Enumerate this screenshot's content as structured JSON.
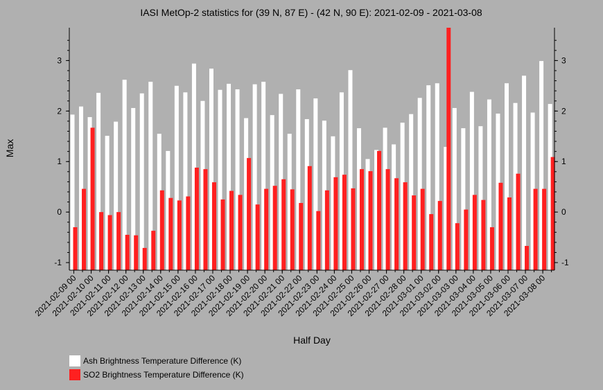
{
  "chart_data": {
    "type": "bar",
    "title": "IASI MetOp-2 statistics for (39 N, 87 E) - (42 N, 90 E): 2021-02-09 - 2021-03-08",
    "xlabel": "Half Day",
    "ylabel": "Max",
    "ylim": [
      -1.15,
      3.65
    ],
    "yticks": [
      -1,
      0,
      1,
      2,
      3
    ],
    "x_tick_labels": [
      "2021-02-09 00",
      "2021-02-10 00",
      "2021-02-11 00",
      "2021-02-12 00",
      "2021-02-13 00",
      "2021-02-14 00",
      "2021-02-15 00",
      "2021-02-16 00",
      "2021-02-17 00",
      "2021-02-18 00",
      "2021-02-19 00",
      "2021-02-20 00",
      "2021-02-21 00",
      "2021-02-22 00",
      "2021-02-23 00",
      "2021-02-24 00",
      "2021-02-25 00",
      "2021-02-26 00",
      "2021-02-27 00",
      "2021-02-28 00",
      "2021-03-01 00",
      "2021-03-02 00",
      "2021-03-03 00",
      "2021-03-04 00",
      "2021-03-05 00",
      "2021-03-06 00",
      "2021-03-07 00",
      "2021-03-08 00"
    ],
    "series": [
      {
        "name": "Ash Brightness Temperature Difference (K)",
        "color": "#ffffff",
        "values": [
          1.93,
          2.09,
          1.88,
          2.36,
          1.51,
          1.79,
          2.62,
          2.06,
          2.35,
          2.58,
          1.55,
          1.21,
          2.5,
          2.37,
          2.94,
          2.2,
          2.84,
          2.42,
          2.54,
          2.43,
          1.86,
          2.53,
          2.58,
          1.92,
          2.34,
          1.55,
          2.43,
          1.84,
          2.25,
          1.81,
          1.5,
          2.37,
          2.81,
          1.66,
          1.05,
          1.23,
          1.67,
          1.34,
          1.77,
          1.94,
          2.26,
          2.51,
          2.55,
          1.29,
          2.06,
          1.66,
          2.38,
          1.7,
          2.23,
          1.95,
          2.55,
          2.16,
          2.7,
          1.97,
          2.99,
          2.14
        ]
      },
      {
        "name": "SO2 Brightness Temperature Difference (K)",
        "color": "#ff2020",
        "values": [
          -0.3,
          0.46,
          1.67,
          0.0,
          -0.06,
          0.0,
          -0.45,
          -0.46,
          -0.71,
          -0.37,
          0.43,
          0.28,
          0.23,
          0.31,
          0.88,
          0.85,
          0.59,
          0.25,
          0.42,
          0.34,
          1.07,
          0.15,
          0.46,
          0.52,
          0.65,
          0.45,
          0.18,
          0.91,
          0.02,
          0.43,
          0.69,
          0.74,
          0.47,
          0.85,
          0.81,
          1.21,
          0.85,
          0.67,
          0.59,
          0.33,
          0.46,
          -0.04,
          0.22,
          3.65,
          -0.22,
          0.05,
          0.34,
          0.24,
          -0.3,
          0.58,
          0.29,
          0.76,
          -0.67,
          0.46,
          0.46,
          1.09
        ]
      }
    ],
    "grid": false,
    "legend_position": "bottom-left"
  }
}
